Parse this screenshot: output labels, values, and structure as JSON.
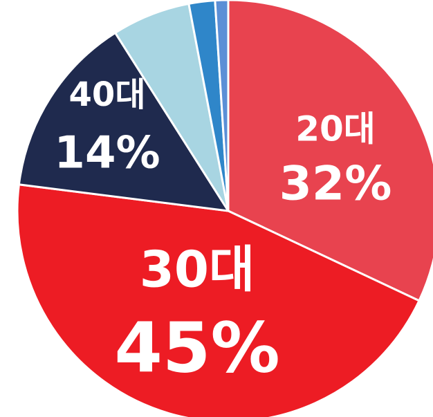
{
  "chart_data": {
    "type": "pie",
    "categories": [
      "20대",
      "30대",
      "40대",
      null,
      null,
      null
    ],
    "values": [
      32,
      45,
      14,
      6,
      2,
      1
    ],
    "value_labels": [
      "32%",
      "45%",
      "14%",
      null,
      null,
      null
    ],
    "colors": [
      "#e8434f",
      "#ed1c24",
      "#1f2a4e",
      "#a8d5e2",
      "#2f86c9",
      "#5b8fd6"
    ]
  }
}
